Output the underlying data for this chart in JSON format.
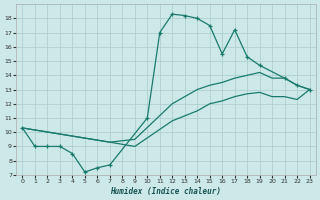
{
  "xlabel": "Humidex (Indice chaleur)",
  "background_color": "#cde8e8",
  "grid_color": "#aacccc",
  "line_color": "#1a7a6e",
  "xlim": [
    -0.5,
    23.5
  ],
  "ylim": [
    7,
    19
  ],
  "xticks": [
    0,
    1,
    2,
    3,
    4,
    5,
    6,
    7,
    8,
    9,
    10,
    11,
    12,
    13,
    14,
    15,
    16,
    17,
    18,
    19,
    20,
    21,
    22,
    23
  ],
  "yticks": [
    7,
    8,
    9,
    10,
    11,
    12,
    13,
    14,
    15,
    16,
    17,
    18
  ],
  "line1_x": [
    0,
    1,
    2,
    3,
    4,
    5,
    6,
    7,
    10,
    11,
    12,
    13,
    14,
    15,
    16,
    17,
    18,
    19,
    21,
    22,
    23
  ],
  "line1_y": [
    10.3,
    9.0,
    9.0,
    9.0,
    8.5,
    7.2,
    7.5,
    7.7,
    11.0,
    17.0,
    18.3,
    18.2,
    18.0,
    17.5,
    15.5,
    17.2,
    15.3,
    14.7,
    13.8,
    13.3,
    13.0
  ],
  "line2_x": [
    0,
    7,
    9,
    12,
    14,
    15,
    16,
    17,
    18,
    19,
    20,
    21,
    22,
    23
  ],
  "line2_y": [
    10.3,
    9.3,
    9.5,
    12.0,
    13.0,
    13.3,
    13.5,
    13.8,
    14.0,
    14.2,
    13.8,
    13.8,
    13.3,
    13.0
  ],
  "line3_x": [
    0,
    7,
    9,
    12,
    14,
    15,
    16,
    17,
    18,
    19,
    20,
    21,
    22,
    23
  ],
  "line3_y": [
    10.3,
    9.3,
    9.0,
    10.8,
    11.5,
    12.0,
    12.2,
    12.5,
    12.7,
    12.8,
    12.5,
    12.5,
    12.3,
    13.0
  ]
}
